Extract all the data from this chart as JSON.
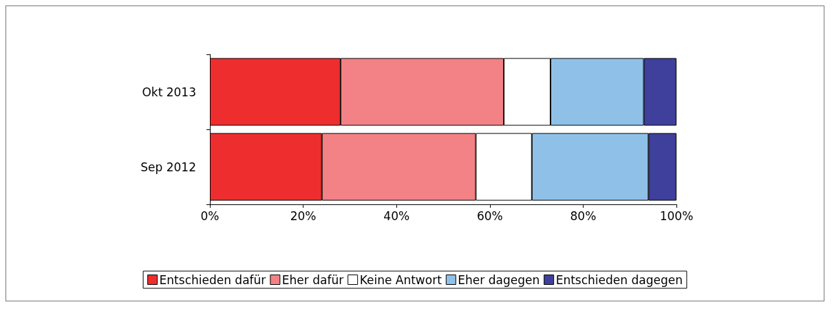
{
  "chart_data": {
    "type": "bar",
    "orientation": "horizontal",
    "stacked": true,
    "categories": [
      "Okt 2013",
      "Sep 2012"
    ],
    "series": [
      {
        "name": "Entschieden dafür",
        "color": "#ee2e2e",
        "values": [
          28,
          24
        ]
      },
      {
        "name": "Eher dafür",
        "color": "#f28285",
        "values": [
          35,
          33
        ]
      },
      {
        "name": "Keine Antwort",
        "color": "#ffffff",
        "values": [
          10,
          12
        ]
      },
      {
        "name": "Eher dagegen",
        "color": "#8fc1e8",
        "values": [
          20,
          25
        ]
      },
      {
        "name": "Entschieden dagegen",
        "color": "#3f3f9c",
        "values": [
          7,
          6
        ]
      }
    ],
    "xlim": [
      0,
      100
    ],
    "xticks": [
      {
        "value": 0,
        "label": "0%"
      },
      {
        "value": 20,
        "label": "20%"
      },
      {
        "value": 40,
        "label": "40%"
      },
      {
        "value": 60,
        "label": "60%"
      },
      {
        "value": 80,
        "label": "80%"
      },
      {
        "value": 100,
        "label": "100%"
      }
    ],
    "grid": false,
    "legend": "bottom"
  }
}
